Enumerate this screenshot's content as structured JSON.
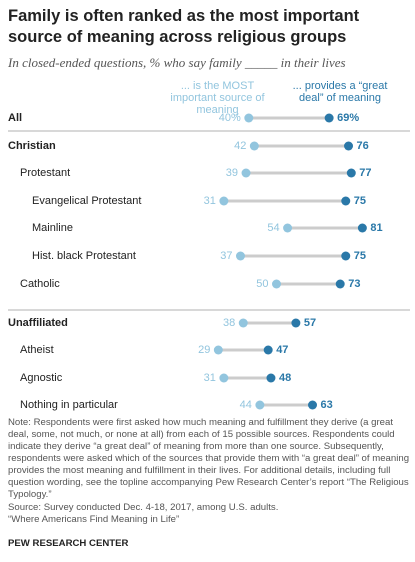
{
  "chart_data": {
    "type": "dumbbell",
    "title": "Family is often ranked as the most important source of meaning across religious groups",
    "subtitle": "In closed-ended questions, % who say family _____ in their lives",
    "categories": [
      "All",
      "Christian",
      "Protestant",
      "Evangelical Protestant",
      "Mainline",
      "Hist. black Protestant",
      "Catholic",
      "Unaffiliated",
      "Atheist",
      "Agnostic",
      "Nothing in particular"
    ],
    "series": [
      {
        "name": "... is the MOST important source of meaning",
        "color": "#92c5de",
        "values": [
          40,
          42,
          39,
          31,
          54,
          37,
          50,
          38,
          29,
          31,
          44
        ],
        "value_labels": [
          "40%",
          "42",
          "39",
          "31",
          "54",
          "37",
          "50",
          "38",
          "29",
          "31",
          "44"
        ]
      },
      {
        "name": "... provides a “great deal” of meaning",
        "color": "#2a78a8",
        "values": [
          69,
          76,
          77,
          75,
          81,
          75,
          73,
          57,
          47,
          48,
          63
        ],
        "value_labels": [
          "69%",
          "76",
          "77",
          "75",
          "81",
          "75",
          "73",
          "57",
          "47",
          "48",
          "63"
        ]
      }
    ],
    "xlim": [
      0,
      100
    ],
    "note": "Note: Respondents were first asked how much meaning and fulfillment they derive (a great deal, some, not much, or none at all) from each of 15 possible sources. Respondents could indicate they derive “a great deal” of meaning from more than one source. Subsequently, respondents were asked which of the sources that provide them with “a great deal” of meaning provides the most meaning and fulfillment in their lives. For additional details, including full question wording, see the topline accompanying Pew Research Center’s report “The Religious Typology.”",
    "source": "Source: Survey conducted Dec. 4-18, 2017, among U.S. adults.",
    "report": "“Where Americans Find Meaning in Life”",
    "footer": "PEW RESEARCH CENTER"
  }
}
